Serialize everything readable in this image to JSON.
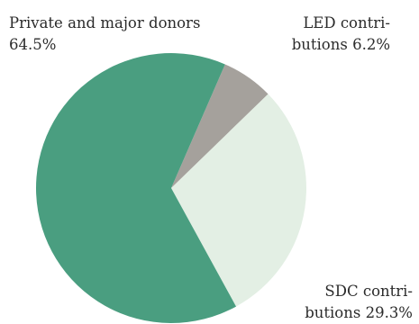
{
  "chart_data": {
    "type": "pie",
    "slices": [
      {
        "label_lines": [
          "LED contri-",
          "butions 6.2%"
        ],
        "value": 6.2,
        "color": "#a5a19c"
      },
      {
        "label_lines": [
          "SDC contri-",
          "butions 29.3%"
        ],
        "value": 29.3,
        "color": "#e3efe4"
      },
      {
        "label_lines": [
          "Private and major donors",
          "64.5%"
        ],
        "value": 64.5,
        "color": "#4a9e80"
      }
    ],
    "start_angle_deg": 23.5,
    "direction": "clockwise"
  }
}
